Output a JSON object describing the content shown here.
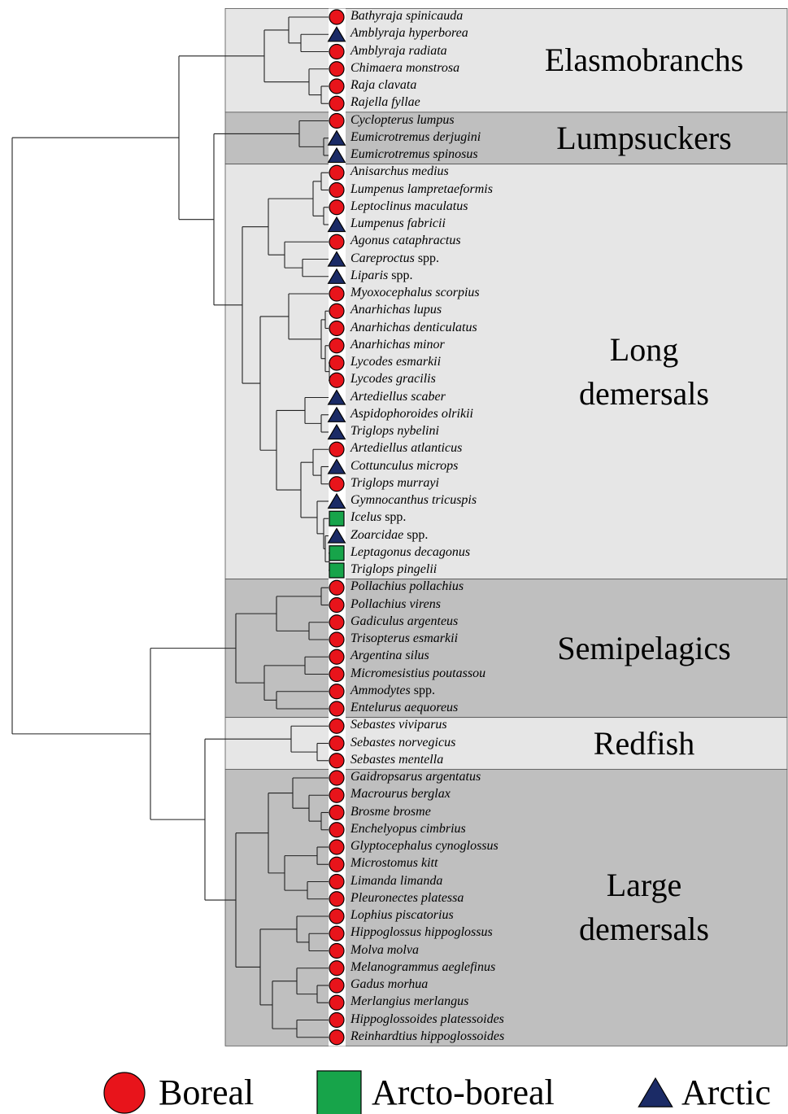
{
  "groups": [
    {
      "label": "Elasmobranchs",
      "species": [
        {
          "name": "Bathyraja spinicauda",
          "range": "Boreal"
        },
        {
          "name": "Amblyraja hyperborea",
          "range": "Arctic"
        },
        {
          "name": "Amblyraja radiata",
          "range": "Boreal"
        },
        {
          "name": "Chimaera monstrosa",
          "range": "Boreal"
        },
        {
          "name": "Raja clavata",
          "range": "Boreal"
        },
        {
          "name": "Rajella fyllae",
          "range": "Boreal"
        }
      ]
    },
    {
      "label": "Lumpsuckers",
      "species": [
        {
          "name": "Cyclopterus lumpus",
          "range": "Boreal"
        },
        {
          "name": "Eumicrotremus derjugini",
          "range": "Arctic"
        },
        {
          "name": "Eumicrotremus spinosus",
          "range": "Arctic"
        }
      ]
    },
    {
      "label": "Long\ndemersals",
      "species": [
        {
          "name": "Anisarchus medius",
          "range": "Boreal"
        },
        {
          "name": "Lumpenus lampretaeformis",
          "range": "Boreal"
        },
        {
          "name": "Leptoclinus maculatus",
          "range": "Boreal"
        },
        {
          "name": "Lumpenus fabricii",
          "range": "Arctic"
        },
        {
          "name": "Agonus cataphractus",
          "range": "Boreal"
        },
        {
          "name": "Careproctus",
          "suffix": "spp.",
          "range": "Arctic"
        },
        {
          "name": "Liparis",
          "suffix": "spp.",
          "range": "Arctic"
        },
        {
          "name": "Myoxocephalus scorpius",
          "range": "Boreal"
        },
        {
          "name": "Anarhichas lupus",
          "range": "Boreal"
        },
        {
          "name": "Anarhichas denticulatus",
          "range": "Boreal"
        },
        {
          "name": "Anarhichas minor",
          "range": "Boreal"
        },
        {
          "name": "Lycodes esmarkii",
          "range": "Boreal"
        },
        {
          "name": "Lycodes gracilis",
          "range": "Boreal"
        },
        {
          "name": "Artediellus scaber",
          "range": "Arctic"
        },
        {
          "name": "Aspidophoroides olrikii",
          "range": "Arctic"
        },
        {
          "name": "Triglops nybelini",
          "range": "Arctic"
        },
        {
          "name": "Artediellus atlanticus",
          "range": "Boreal"
        },
        {
          "name": "Cottunculus microps",
          "range": "Arctic"
        },
        {
          "name": "Triglops murrayi",
          "range": "Boreal"
        },
        {
          "name": "Gymnocanthus tricuspis",
          "range": "Arctic"
        },
        {
          "name": "Icelus",
          "suffix": "spp.",
          "range": "Arcto-boreal"
        },
        {
          "name": "Zoarcidae",
          "suffix": "spp.",
          "range": "Arctic"
        },
        {
          "name": "Leptagonus decagonus",
          "range": "Arcto-boreal"
        },
        {
          "name": "Triglops pingelii",
          "range": "Arcto-boreal"
        }
      ]
    },
    {
      "label": "Semipelagics",
      "species": [
        {
          "name": "Pollachius pollachius",
          "range": "Boreal"
        },
        {
          "name": "Pollachius virens",
          "range": "Boreal"
        },
        {
          "name": "Gadiculus argenteus",
          "range": "Boreal"
        },
        {
          "name": "Trisopterus esmarkii",
          "range": "Boreal"
        },
        {
          "name": "Argentina silus",
          "range": "Boreal"
        },
        {
          "name": "Micromesistius poutassou",
          "range": "Boreal"
        },
        {
          "name": "Ammodytes",
          "suffix": "spp.",
          "range": "Boreal"
        },
        {
          "name": "Entelurus aequoreus",
          "range": "Boreal"
        }
      ]
    },
    {
      "label": "Redfish",
      "species": [
        {
          "name": "Sebastes viviparus",
          "range": "Boreal"
        },
        {
          "name": "Sebastes norvegicus",
          "range": "Boreal"
        },
        {
          "name": "Sebastes mentella",
          "range": "Boreal"
        }
      ]
    },
    {
      "label": "Large\ndemersals",
      "species": [
        {
          "name": "Gaidropsarus argentatus",
          "range": "Boreal"
        },
        {
          "name": "Macrourus berglax",
          "range": "Boreal"
        },
        {
          "name": "Brosme brosme",
          "range": "Boreal"
        },
        {
          "name": "Enchelyopus cimbrius",
          "range": "Boreal"
        },
        {
          "name": "Glyptocephalus cynoglossus",
          "range": "Boreal"
        },
        {
          "name": "Microstomus kitt",
          "range": "Boreal"
        },
        {
          "name": "Limanda limanda",
          "range": "Boreal"
        },
        {
          "name": "Pleuronectes platessa",
          "range": "Boreal"
        },
        {
          "name": "Lophius piscatorius",
          "range": "Boreal"
        },
        {
          "name": "Hippoglossus hippoglossus",
          "range": "Boreal"
        },
        {
          "name": "Molva molva",
          "range": "Boreal"
        },
        {
          "name": "Melanogrammus aeglefinus",
          "range": "Boreal"
        },
        {
          "name": "Gadus morhua",
          "range": "Boreal"
        },
        {
          "name": "Merlangius merlangus",
          "range": "Boreal"
        },
        {
          "name": "Hippoglossoides platessoides",
          "range": "Boreal"
        },
        {
          "name": "Reinhardtius hippoglossoides",
          "range": "Boreal"
        }
      ]
    }
  ],
  "legend": [
    "Boreal",
    "Arcto-boreal",
    "Arctic"
  ]
}
